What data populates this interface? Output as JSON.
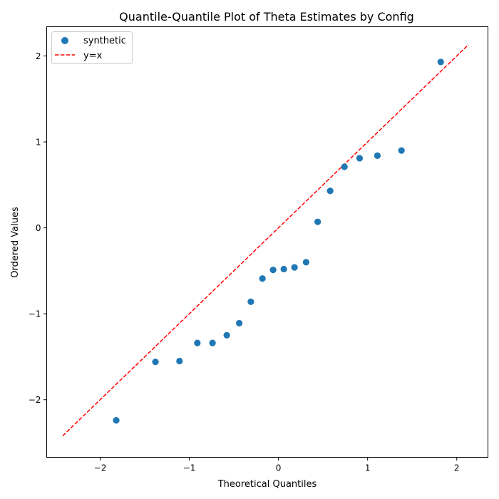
{
  "chart_data": {
    "type": "scatter",
    "title": "Quantile-Quantile Plot of Theta Estimates by Config",
    "xlabel": "Theoretical Quantiles",
    "ylabel": "Ordered Values",
    "xlim": [
      -2.6,
      2.35
    ],
    "ylim": [
      -2.67,
      2.34
    ],
    "xticks": [
      -2,
      -1,
      0,
      1,
      2
    ],
    "yticks": [
      -2,
      -1,
      0,
      1,
      2
    ],
    "grid": false,
    "legend_position": "top-left",
    "series": [
      {
        "name": "synthetic",
        "kind": "scatter",
        "color": "#1f77b4",
        "x": [
          -1.82,
          -1.38,
          -1.11,
          -0.91,
          -0.74,
          -0.58,
          -0.44,
          -0.31,
          -0.18,
          -0.06,
          0.06,
          0.18,
          0.31,
          0.44,
          0.58,
          0.74,
          0.91,
          1.11,
          1.38,
          1.82
        ],
        "y": [
          -2.24,
          -1.56,
          -1.55,
          -1.34,
          -1.34,
          -1.25,
          -1.11,
          -0.86,
          -0.59,
          -0.49,
          -0.48,
          -0.46,
          -0.4,
          0.07,
          0.43,
          0.71,
          0.81,
          0.84,
          0.9,
          1.93
        ]
      },
      {
        "name": "y=x",
        "kind": "line",
        "style": "dashed",
        "color": "#ff0000",
        "x": [
          -2.42,
          2.13
        ],
        "y": [
          -2.42,
          2.13
        ]
      }
    ]
  }
}
